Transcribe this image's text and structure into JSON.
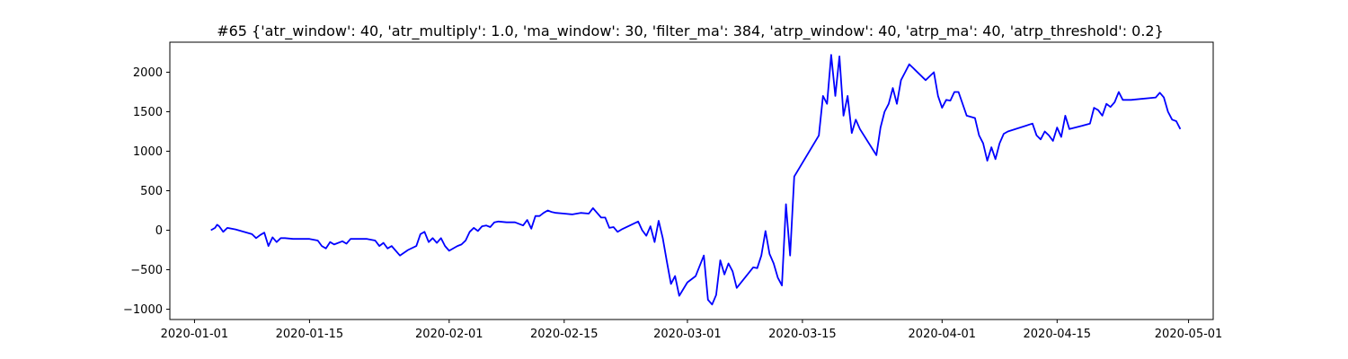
{
  "chart_data": {
    "type": "line",
    "title": "#65 {'atr_window': 40, 'atr_multiply': 1.0, 'ma_window': 30, 'filter_ma': 384, 'atrp_window': 40, 'atrp_ma': 40, 'atrp_threshold': 0.2}",
    "xlabel": "",
    "ylabel": "",
    "xlim": [
      "2019-12-29",
      "2020-05-04"
    ],
    "ylim": [
      -1130,
      2380
    ],
    "x_ticks": [
      "2020-01-01",
      "2020-01-15",
      "2020-02-01",
      "2020-02-15",
      "2020-03-01",
      "2020-03-15",
      "2020-04-01",
      "2020-04-15",
      "2020-05-01"
    ],
    "y_ticks": [
      -1000,
      -500,
      0,
      500,
      1000,
      1500,
      2000
    ],
    "grid": false,
    "legend": "none",
    "series": [
      {
        "color": "#0000ff",
        "points": [
          [
            "2020-01-03",
            0
          ],
          [
            "2020-01-03T12:00",
            30
          ],
          [
            "2020-01-03T18:00",
            70
          ],
          [
            "2020-01-04",
            50
          ],
          [
            "2020-01-04T12:00",
            -20
          ],
          [
            "2020-01-05",
            30
          ],
          [
            "2020-01-06",
            10
          ],
          [
            "2020-01-07",
            -20
          ],
          [
            "2020-01-08",
            -50
          ],
          [
            "2020-01-08T12:00",
            -100
          ],
          [
            "2020-01-09",
            -60
          ],
          [
            "2020-01-09T12:00",
            -30
          ],
          [
            "2020-01-10",
            -200
          ],
          [
            "2020-01-10T12:00",
            -90
          ],
          [
            "2020-01-11",
            -150
          ],
          [
            "2020-01-11T12:00",
            -100
          ],
          [
            "2020-01-12",
            -100
          ],
          [
            "2020-01-13",
            -110
          ],
          [
            "2020-01-14",
            -110
          ],
          [
            "2020-01-15",
            -110
          ],
          [
            "2020-01-16",
            -130
          ],
          [
            "2020-01-16T12:00",
            -200
          ],
          [
            "2020-01-17",
            -230
          ],
          [
            "2020-01-17T12:00",
            -150
          ],
          [
            "2020-01-18",
            -180
          ],
          [
            "2020-01-19",
            -140
          ],
          [
            "2020-01-19T12:00",
            -170
          ],
          [
            "2020-01-20",
            -110
          ],
          [
            "2020-01-21",
            -110
          ],
          [
            "2020-01-22",
            -110
          ],
          [
            "2020-01-23",
            -130
          ],
          [
            "2020-01-23T12:00",
            -200
          ],
          [
            "2020-01-24",
            -160
          ],
          [
            "2020-01-24T12:00",
            -230
          ],
          [
            "2020-01-25",
            -200
          ],
          [
            "2020-01-26",
            -320
          ],
          [
            "2020-01-27",
            -250
          ],
          [
            "2020-01-28",
            -200
          ],
          [
            "2020-01-28T12:00",
            -50
          ],
          [
            "2020-01-29",
            -20
          ],
          [
            "2020-01-29T12:00",
            -150
          ],
          [
            "2020-01-30",
            -100
          ],
          [
            "2020-01-30T12:00",
            -160
          ],
          [
            "2020-01-31",
            -100
          ],
          [
            "2020-01-31T12:00",
            -200
          ],
          [
            "2020-02-01",
            -260
          ],
          [
            "2020-02-02",
            -200
          ],
          [
            "2020-02-02T12:00",
            -180
          ],
          [
            "2020-02-03",
            -130
          ],
          [
            "2020-02-03T12:00",
            -20
          ],
          [
            "2020-02-04",
            30
          ],
          [
            "2020-02-04T12:00",
            -10
          ],
          [
            "2020-02-05",
            50
          ],
          [
            "2020-02-05T12:00",
            60
          ],
          [
            "2020-02-06",
            40
          ],
          [
            "2020-02-06T12:00",
            100
          ],
          [
            "2020-02-07",
            110
          ],
          [
            "2020-02-08",
            100
          ],
          [
            "2020-02-09",
            100
          ],
          [
            "2020-02-10",
            60
          ],
          [
            "2020-02-10T12:00",
            130
          ],
          [
            "2020-02-11",
            20
          ],
          [
            "2020-02-11T12:00",
            180
          ],
          [
            "2020-02-12",
            180
          ],
          [
            "2020-02-12T12:00",
            220
          ],
          [
            "2020-02-13",
            250
          ],
          [
            "2020-02-13T12:00",
            230
          ],
          [
            "2020-02-14",
            220
          ],
          [
            "2020-02-15",
            210
          ],
          [
            "2020-02-16",
            200
          ],
          [
            "2020-02-17",
            220
          ],
          [
            "2020-02-18",
            210
          ],
          [
            "2020-02-18T12:00",
            280
          ],
          [
            "2020-02-19",
            220
          ],
          [
            "2020-02-19T12:00",
            160
          ],
          [
            "2020-02-20",
            160
          ],
          [
            "2020-02-20T12:00",
            30
          ],
          [
            "2020-02-21",
            40
          ],
          [
            "2020-02-21T12:00",
            -20
          ],
          [
            "2020-02-22",
            10
          ],
          [
            "2020-02-24",
            110
          ],
          [
            "2020-02-24T12:00",
            0
          ],
          [
            "2020-02-25",
            -70
          ],
          [
            "2020-02-25T12:00",
            50
          ],
          [
            "2020-02-26",
            -150
          ],
          [
            "2020-02-26T12:00",
            120
          ],
          [
            "2020-02-27",
            -100
          ],
          [
            "2020-02-27T12:00",
            -400
          ],
          [
            "2020-02-28",
            -680
          ],
          [
            "2020-02-28T12:00",
            -580
          ],
          [
            "2020-02-29",
            -830
          ],
          [
            "2020-03-01",
            -660
          ],
          [
            "2020-03-02",
            -580
          ],
          [
            "2020-03-03",
            -320
          ],
          [
            "2020-03-03T12:00",
            -880
          ],
          [
            "2020-03-04",
            -940
          ],
          [
            "2020-03-04T12:00",
            -820
          ],
          [
            "2020-03-05",
            -380
          ],
          [
            "2020-03-05T12:00",
            -560
          ],
          [
            "2020-03-06",
            -420
          ],
          [
            "2020-03-06T12:00",
            -520
          ],
          [
            "2020-03-07",
            -730
          ],
          [
            "2020-03-09",
            -470
          ],
          [
            "2020-03-09T12:00",
            -480
          ],
          [
            "2020-03-10",
            -320
          ],
          [
            "2020-03-10T12:00",
            -10
          ],
          [
            "2020-03-11",
            -300
          ],
          [
            "2020-03-11T12:00",
            -420
          ],
          [
            "2020-03-12",
            -600
          ],
          [
            "2020-03-12T12:00",
            -700
          ],
          [
            "2020-03-13",
            330
          ],
          [
            "2020-03-13T12:00",
            -320
          ],
          [
            "2020-03-14",
            680
          ],
          [
            "2020-03-17",
            1200
          ],
          [
            "2020-03-17T12:00",
            1700
          ],
          [
            "2020-03-18",
            1600
          ],
          [
            "2020-03-18T12:00",
            2220
          ],
          [
            "2020-03-19",
            1700
          ],
          [
            "2020-03-19T12:00",
            2200
          ],
          [
            "2020-03-20",
            1450
          ],
          [
            "2020-03-20T12:00",
            1700
          ],
          [
            "2020-03-21",
            1230
          ],
          [
            "2020-03-21T12:00",
            1400
          ],
          [
            "2020-03-22",
            1280
          ],
          [
            "2020-03-24",
            950
          ],
          [
            "2020-03-24T12:00",
            1300
          ],
          [
            "2020-03-25",
            1500
          ],
          [
            "2020-03-25T12:00",
            1600
          ],
          [
            "2020-03-26",
            1800
          ],
          [
            "2020-03-26T12:00",
            1600
          ],
          [
            "2020-03-27",
            1900
          ],
          [
            "2020-03-27T12:00",
            2000
          ],
          [
            "2020-03-28",
            2100
          ],
          [
            "2020-03-30",
            1900
          ],
          [
            "2020-03-31",
            2000
          ],
          [
            "2020-03-31T12:00",
            1700
          ],
          [
            "2020-04-01",
            1550
          ],
          [
            "2020-04-01T12:00",
            1650
          ],
          [
            "2020-04-02",
            1640
          ],
          [
            "2020-04-02T12:00",
            1750
          ],
          [
            "2020-04-03",
            1750
          ],
          [
            "2020-04-04",
            1450
          ],
          [
            "2020-04-05",
            1420
          ],
          [
            "2020-04-05T12:00",
            1200
          ],
          [
            "2020-04-06",
            1100
          ],
          [
            "2020-04-06T12:00",
            880
          ],
          [
            "2020-04-07",
            1050
          ],
          [
            "2020-04-07T12:00",
            900
          ],
          [
            "2020-04-08",
            1100
          ],
          [
            "2020-04-08T12:00",
            1220
          ],
          [
            "2020-04-09",
            1250
          ],
          [
            "2020-04-12",
            1350
          ],
          [
            "2020-04-12T12:00",
            1200
          ],
          [
            "2020-04-13",
            1150
          ],
          [
            "2020-04-13T12:00",
            1250
          ],
          [
            "2020-04-14",
            1200
          ],
          [
            "2020-04-14T12:00",
            1130
          ],
          [
            "2020-04-15",
            1300
          ],
          [
            "2020-04-15T12:00",
            1180
          ],
          [
            "2020-04-16",
            1450
          ],
          [
            "2020-04-16T12:00",
            1280
          ],
          [
            "2020-04-18",
            1320
          ],
          [
            "2020-04-19",
            1350
          ],
          [
            "2020-04-19T12:00",
            1550
          ],
          [
            "2020-04-20",
            1520
          ],
          [
            "2020-04-20T12:00",
            1450
          ],
          [
            "2020-04-21",
            1600
          ],
          [
            "2020-04-21T12:00",
            1560
          ],
          [
            "2020-04-22",
            1620
          ],
          [
            "2020-04-22T12:00",
            1750
          ],
          [
            "2020-04-23",
            1650
          ],
          [
            "2020-04-24",
            1650
          ],
          [
            "2020-04-27",
            1680
          ],
          [
            "2020-04-27T12:00",
            1740
          ],
          [
            "2020-04-28",
            1680
          ],
          [
            "2020-04-28T12:00",
            1500
          ],
          [
            "2020-04-29",
            1400
          ],
          [
            "2020-04-29T12:00",
            1380
          ],
          [
            "2020-04-30",
            1280
          ]
        ]
      }
    ]
  }
}
